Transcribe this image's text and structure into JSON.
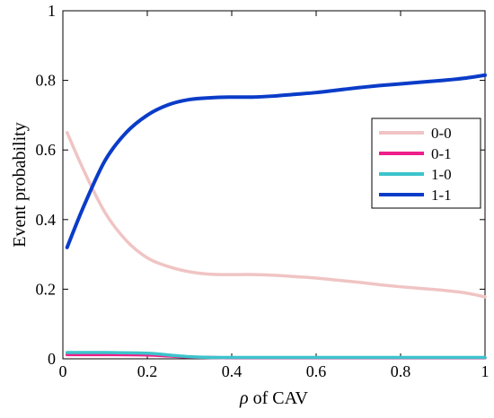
{
  "chart_data": {
    "type": "line",
    "title": "",
    "xlabel_prefix": "ρ",
    "xlabel_suffix": " of CAV",
    "ylabel": "Event probability",
    "xlim": [
      0,
      1
    ],
    "ylim": [
      0,
      1
    ],
    "x_ticks": [
      "0",
      "0.2",
      "0.4",
      "0.6",
      "0.8",
      "1"
    ],
    "y_ticks": [
      "0",
      "0.2",
      "0.4",
      "0.6",
      "0.8",
      "1"
    ],
    "grid": false,
    "legend_position": "right",
    "series": [
      {
        "name": "0-0",
        "color": "#f0c4c4",
        "x": [
          0.01,
          0.05,
          0.1,
          0.15,
          0.2,
          0.25,
          0.3,
          0.35,
          0.4,
          0.45,
          0.5,
          0.55,
          0.6,
          0.65,
          0.7,
          0.75,
          0.8,
          0.85,
          0.9,
          0.95,
          1.0
        ],
        "y": [
          0.65,
          0.54,
          0.42,
          0.34,
          0.29,
          0.265,
          0.25,
          0.243,
          0.242,
          0.242,
          0.24,
          0.236,
          0.232,
          0.226,
          0.22,
          0.213,
          0.207,
          0.202,
          0.197,
          0.19,
          0.178
        ]
      },
      {
        "name": "0-1",
        "color": "#ee1f8a",
        "x": [
          0.01,
          0.1,
          0.2,
          0.3,
          0.4,
          0.5,
          0.6,
          0.7,
          0.8,
          0.9,
          1.0
        ],
        "y": [
          0.012,
          0.012,
          0.011,
          0.005,
          0.003,
          0.003,
          0.003,
          0.003,
          0.003,
          0.003,
          0.003
        ]
      },
      {
        "name": "1-0",
        "color": "#3cc4cb",
        "x": [
          0.01,
          0.1,
          0.2,
          0.25,
          0.3,
          0.35,
          0.4,
          0.5,
          0.6,
          0.7,
          0.8,
          0.9,
          1.0
        ],
        "y": [
          0.018,
          0.018,
          0.016,
          0.011,
          0.006,
          0.004,
          0.004,
          0.004,
          0.004,
          0.004,
          0.004,
          0.004,
          0.004
        ]
      },
      {
        "name": "1-1",
        "color": "#0a3cc8",
        "x": [
          0.01,
          0.05,
          0.1,
          0.15,
          0.2,
          0.25,
          0.3,
          0.35,
          0.4,
          0.45,
          0.5,
          0.55,
          0.6,
          0.65,
          0.7,
          0.75,
          0.8,
          0.85,
          0.9,
          0.95,
          1.0
        ],
        "y": [
          0.32,
          0.44,
          0.57,
          0.65,
          0.7,
          0.73,
          0.745,
          0.75,
          0.752,
          0.752,
          0.755,
          0.76,
          0.765,
          0.772,
          0.779,
          0.785,
          0.79,
          0.795,
          0.8,
          0.806,
          0.815
        ]
      }
    ]
  }
}
